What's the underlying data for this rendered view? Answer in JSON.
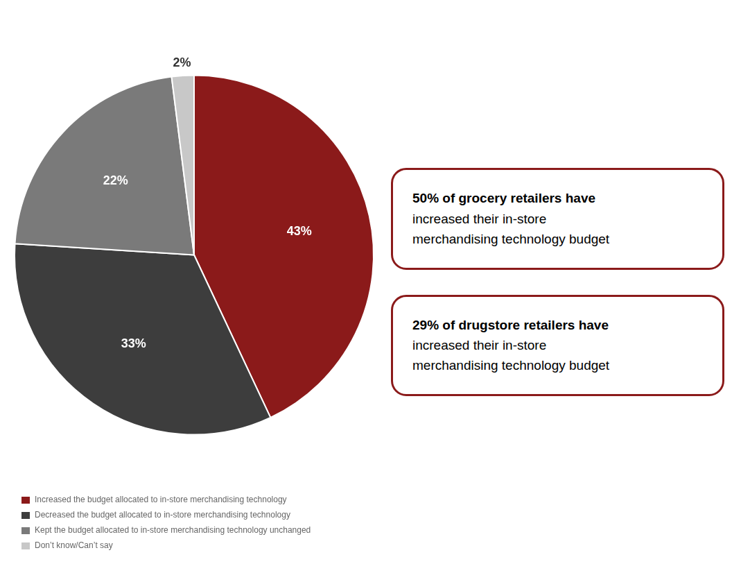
{
  "chart_data": {
    "type": "pie",
    "categories": [
      "Increased the budget allocated to in-store merchandising technology",
      "Decreased the budget allocated to in-store merchandising technology",
      "Kept the budget allocated to in-store merchandising technology unchanged",
      "Don’t know/Can’t say"
    ],
    "values": [
      43,
      33,
      22,
      2
    ],
    "colors": [
      "#8B1A1A",
      "#3D3D3D",
      "#7A7A7A",
      "#C8C8C8"
    ],
    "data_labels": true,
    "value_labels": [
      "43%",
      "33%",
      "22%",
      "2%"
    ],
    "legend": "bottom",
    "annotations": [
      [
        "50% of grocery retailers have",
        "increased their in-store",
        "merchandising technology budget"
      ],
      [
        "29% of drugstore retailers have",
        "increased their in-store",
        "merchandising technology budget"
      ]
    ]
  }
}
